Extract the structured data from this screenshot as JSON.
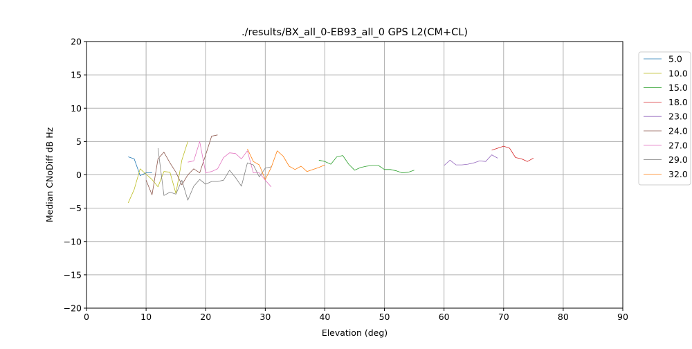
{
  "chart_data": {
    "type": "line",
    "title": "./results/BX_all_0-EB93_all_0 GPS L2(CM+CL)",
    "xlabel": "Elevation (deg)",
    "ylabel": "Median CNoDiff dB Hz",
    "xlim": [
      0,
      90
    ],
    "ylim": [
      -20,
      20
    ],
    "xticks": [
      0,
      10,
      20,
      30,
      40,
      50,
      60,
      70,
      80,
      90
    ],
    "yticks": [
      -20,
      -15,
      -10,
      -5,
      0,
      5,
      10,
      15,
      20
    ],
    "xtick_labels": [
      "0",
      "10",
      "20",
      "30",
      "40",
      "50",
      "60",
      "70",
      "80",
      "90"
    ],
    "ytick_labels": [
      "−20",
      "−15",
      "−10",
      "−5",
      "0",
      "5",
      "10",
      "15",
      "20"
    ],
    "grid": true,
    "legend_position": "right",
    "series": [
      {
        "name": "5.0",
        "color": "#1f77b4",
        "x": [
          7,
          8,
          9,
          10,
          11
        ],
        "y": [
          2.7,
          2.4,
          -0.1,
          0.3,
          0.3
        ]
      },
      {
        "name": "10.0",
        "color": "#bcbd22",
        "x": [
          7,
          8,
          9,
          10,
          11,
          12,
          13,
          14,
          15,
          16,
          17
        ],
        "y": [
          -4.2,
          -2.2,
          0.9,
          0.1,
          -0.7,
          -1.8,
          0.5,
          0.4,
          -2.8,
          2.2,
          5.0
        ]
      },
      {
        "name": "15.0",
        "color": "#2ca02c",
        "x": [
          39,
          40,
          41,
          42,
          43,
          44,
          45,
          46,
          47,
          48,
          49,
          50,
          51,
          52,
          53,
          54,
          55
        ],
        "y": [
          2.2,
          2.0,
          1.6,
          2.7,
          2.9,
          1.6,
          0.7,
          1.1,
          1.3,
          1.4,
          1.4,
          0.8,
          0.8,
          0.6,
          0.3,
          0.4,
          0.7
        ]
      },
      {
        "name": "18.0",
        "color": "#d62728",
        "x": [
          68,
          69,
          70,
          71,
          72,
          73,
          74,
          75
        ],
        "y": [
          3.7,
          4.0,
          4.3,
          4.0,
          2.6,
          2.4,
          2.0,
          2.5
        ]
      },
      {
        "name": "23.0",
        "color": "#9467bd",
        "x": [
          60,
          61,
          62,
          63,
          64,
          65,
          66,
          67,
          68,
          69
        ],
        "y": [
          1.4,
          2.2,
          1.5,
          1.5,
          1.6,
          1.8,
          2.1,
          2.0,
          3.0,
          2.5
        ]
      },
      {
        "name": "24.0",
        "color": "#8c564b",
        "x": [
          10,
          11,
          12,
          13,
          14,
          15,
          16,
          17,
          18,
          19,
          20,
          21,
          22
        ],
        "y": [
          -0.8,
          -3.0,
          2.4,
          3.4,
          1.8,
          0.4,
          -1.5,
          0.0,
          0.9,
          0.3,
          3.0,
          5.8,
          6.0
        ]
      },
      {
        "name": "27.0",
        "color": "#e377c2",
        "x": [
          17,
          18,
          19,
          20,
          21,
          22,
          23,
          24,
          25,
          26,
          27,
          28,
          29,
          30,
          31
        ],
        "y": [
          1.9,
          2.1,
          5.0,
          0.3,
          0.5,
          0.9,
          2.6,
          3.3,
          3.2,
          2.4,
          3.6,
          0.3,
          0.3,
          -0.8,
          -1.8
        ]
      },
      {
        "name": "29.0",
        "color": "#7f7f7f",
        "x": [
          12,
          13,
          14,
          15,
          16,
          17,
          18,
          19,
          20,
          21,
          22,
          23,
          24,
          25,
          26,
          27,
          28,
          29,
          30,
          31
        ],
        "y": [
          4.0,
          -3.1,
          -2.6,
          -2.9,
          -0.8,
          -3.8,
          -1.7,
          -0.7,
          -1.4,
          -1.0,
          -1.0,
          -0.8,
          0.7,
          -0.4,
          -1.7,
          1.8,
          1.5,
          -0.3,
          1.0,
          1.2
        ]
      },
      {
        "name": "32.0",
        "color": "#ff7f0e",
        "x": [
          27,
          28,
          29,
          30,
          31,
          32,
          33,
          34,
          35,
          36,
          37,
          38,
          39,
          40
        ],
        "y": [
          3.9,
          2.0,
          1.5,
          -0.7,
          1.1,
          3.6,
          2.8,
          1.3,
          0.8,
          1.3,
          0.5,
          0.8,
          1.1,
          1.5
        ]
      }
    ]
  }
}
